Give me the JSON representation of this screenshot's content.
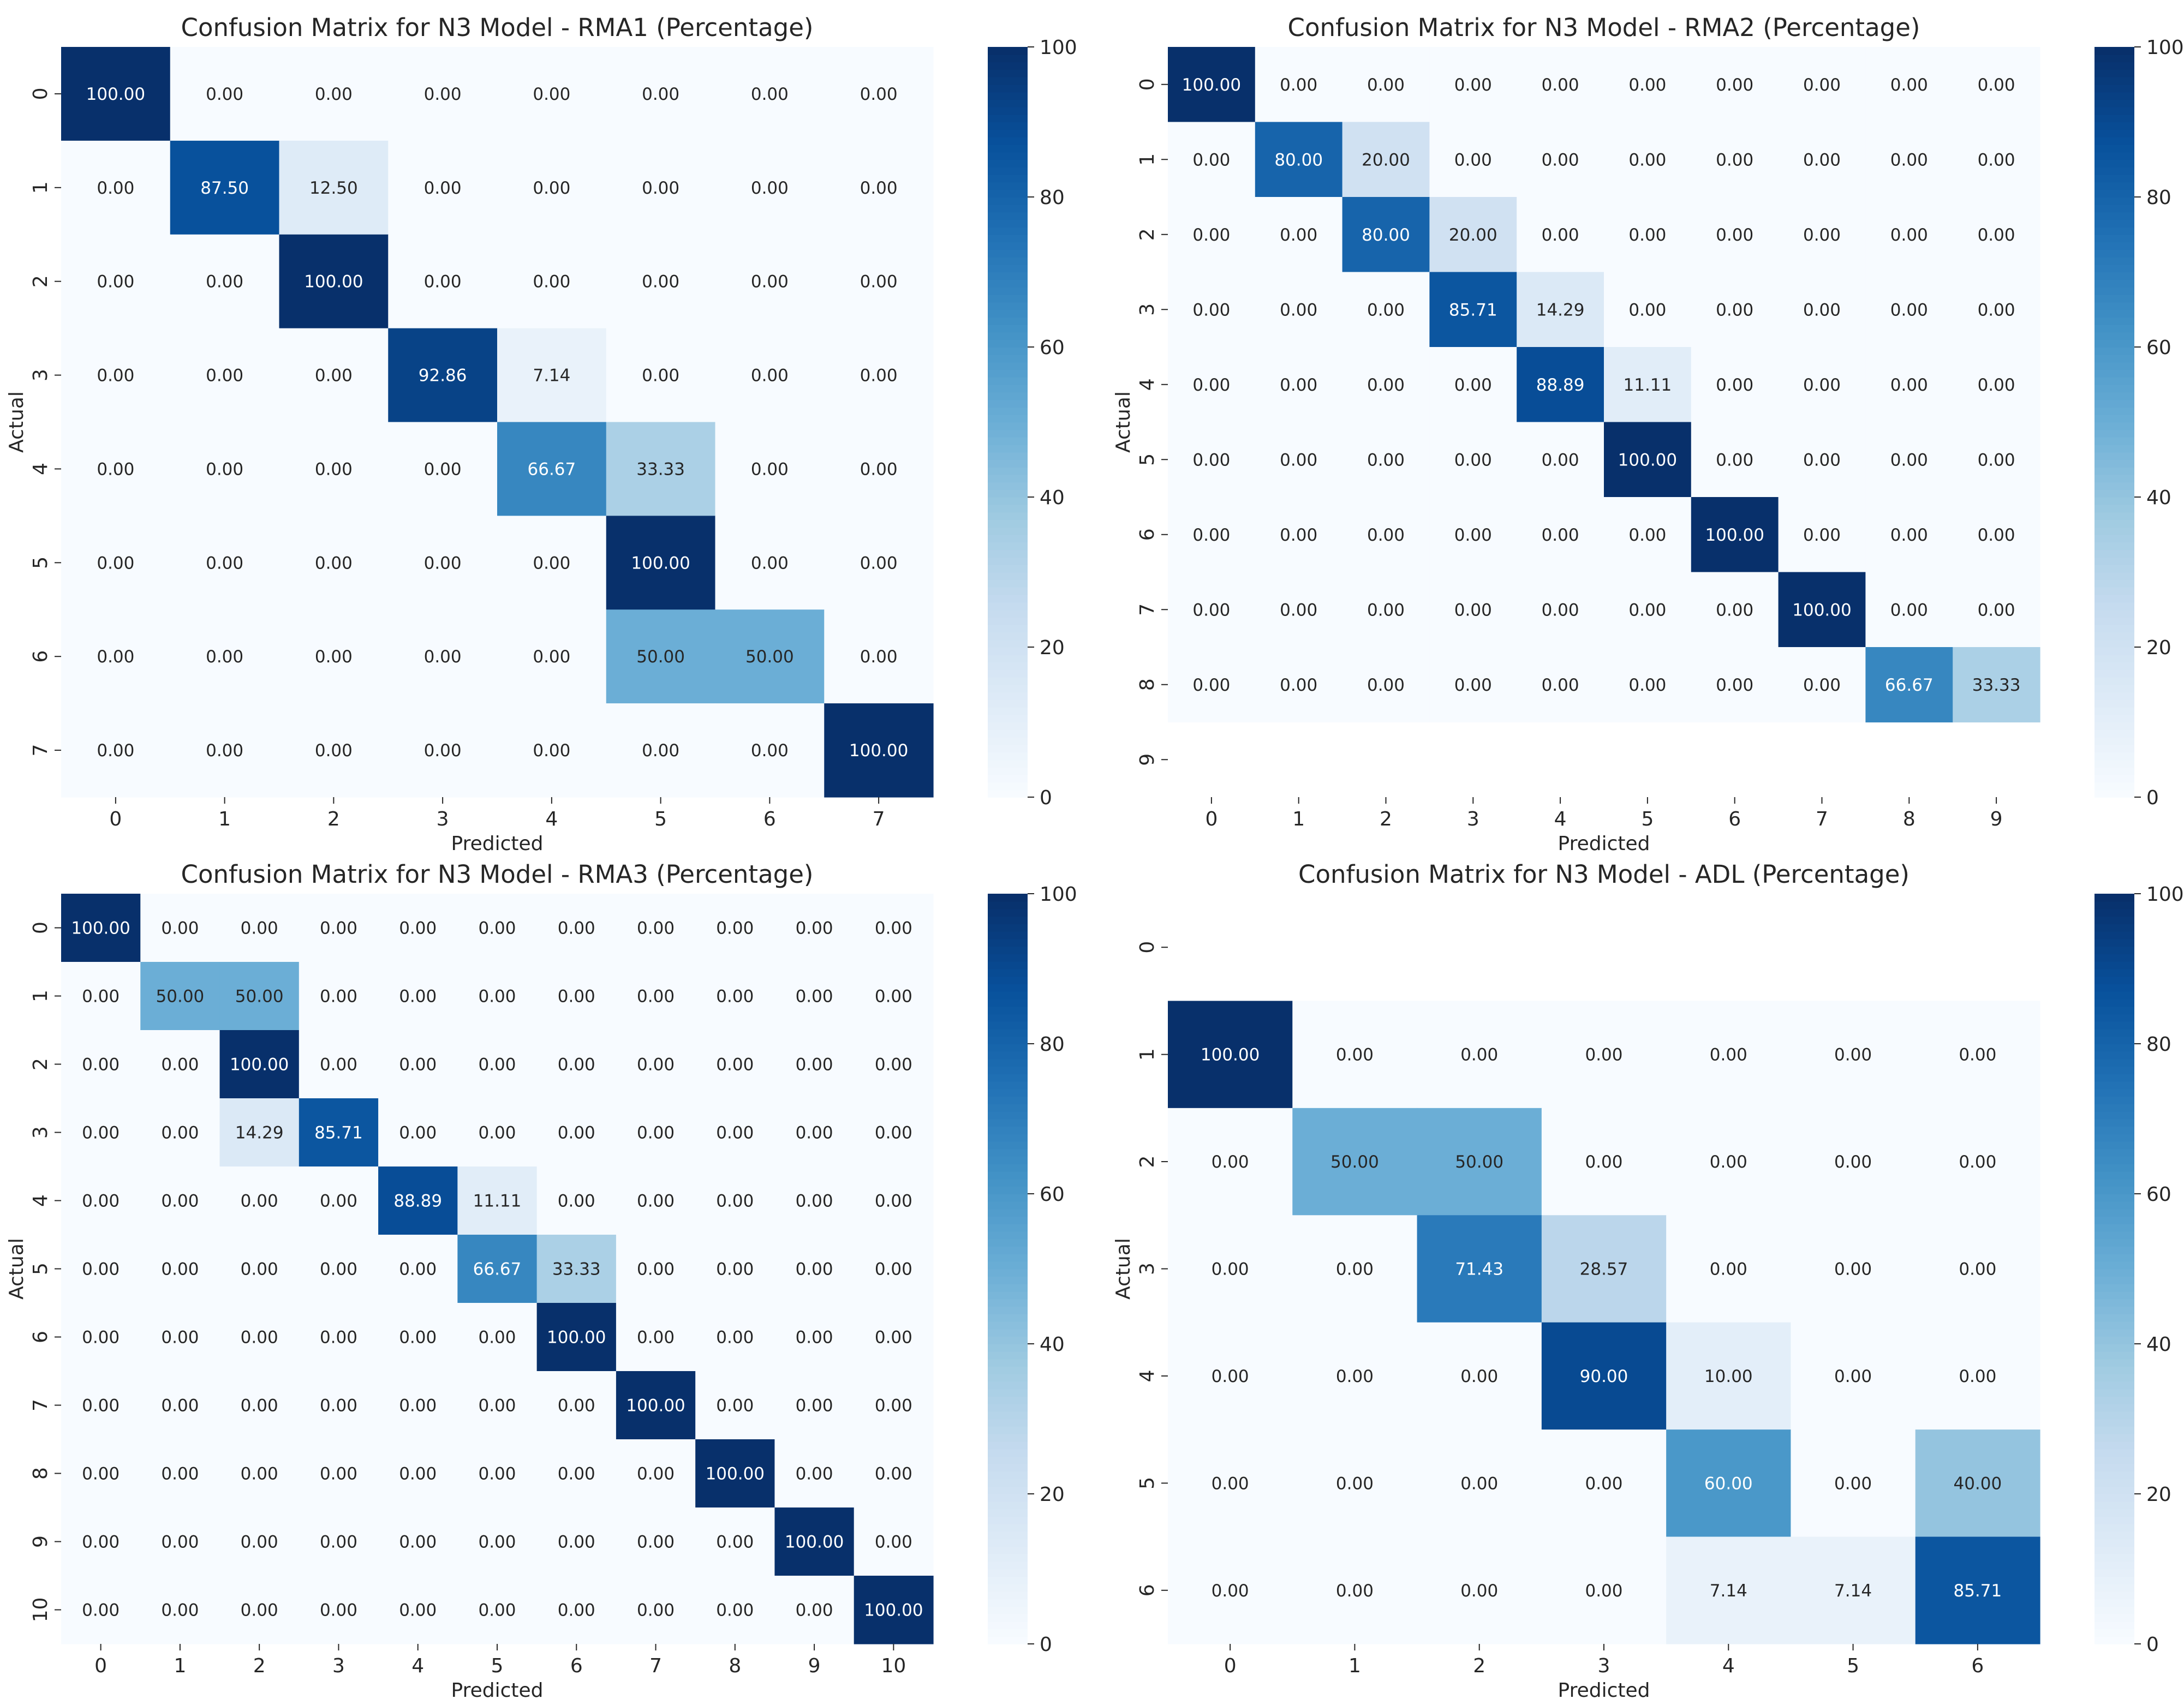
{
  "chart_data": [
    {
      "type": "heatmap",
      "title": "Confusion Matrix for N3 Model - RMA1 (Percentage)",
      "xlabel": "Predicted",
      "ylabel": "Actual",
      "x_categories": [
        "0",
        "1",
        "2",
        "3",
        "4",
        "5",
        "6",
        "7"
      ],
      "y_categories": [
        "0",
        "1",
        "2",
        "3",
        "4",
        "5",
        "6",
        "7"
      ],
      "values": [
        [
          100.0,
          0.0,
          0.0,
          0.0,
          0.0,
          0.0,
          0.0,
          0.0
        ],
        [
          0.0,
          87.5,
          12.5,
          0.0,
          0.0,
          0.0,
          0.0,
          0.0
        ],
        [
          0.0,
          0.0,
          100.0,
          0.0,
          0.0,
          0.0,
          0.0,
          0.0
        ],
        [
          0.0,
          0.0,
          0.0,
          92.86,
          7.14,
          0.0,
          0.0,
          0.0
        ],
        [
          0.0,
          0.0,
          0.0,
          0.0,
          66.67,
          33.33,
          0.0,
          0.0
        ],
        [
          0.0,
          0.0,
          0.0,
          0.0,
          0.0,
          100.0,
          0.0,
          0.0
        ],
        [
          0.0,
          0.0,
          0.0,
          0.0,
          0.0,
          50.0,
          50.0,
          0.0
        ],
        [
          0.0,
          0.0,
          0.0,
          0.0,
          0.0,
          0.0,
          0.0,
          100.0
        ]
      ],
      "colorbar": {
        "range": [
          0,
          100
        ],
        "ticks": [
          "0",
          "20",
          "40",
          "60",
          "80",
          "100"
        ],
        "colormap": "Blues"
      }
    },
    {
      "type": "heatmap",
      "title": "Confusion Matrix for N3 Model - RMA2 (Percentage)",
      "xlabel": "Predicted",
      "ylabel": "Actual",
      "x_categories": [
        "0",
        "1",
        "2",
        "3",
        "4",
        "5",
        "6",
        "7",
        "8",
        "9"
      ],
      "y_categories": [
        "0",
        "1",
        "2",
        "3",
        "4",
        "5",
        "6",
        "7",
        "8",
        "9"
      ],
      "values": [
        [
          100.0,
          0.0,
          0.0,
          0.0,
          0.0,
          0.0,
          0.0,
          0.0,
          0.0,
          0.0
        ],
        [
          0.0,
          80.0,
          20.0,
          0.0,
          0.0,
          0.0,
          0.0,
          0.0,
          0.0,
          0.0
        ],
        [
          0.0,
          0.0,
          80.0,
          20.0,
          0.0,
          0.0,
          0.0,
          0.0,
          0.0,
          0.0
        ],
        [
          0.0,
          0.0,
          0.0,
          85.71,
          14.29,
          0.0,
          0.0,
          0.0,
          0.0,
          0.0
        ],
        [
          0.0,
          0.0,
          0.0,
          0.0,
          88.89,
          11.11,
          0.0,
          0.0,
          0.0,
          0.0
        ],
        [
          0.0,
          0.0,
          0.0,
          0.0,
          0.0,
          100.0,
          0.0,
          0.0,
          0.0,
          0.0
        ],
        [
          0.0,
          0.0,
          0.0,
          0.0,
          0.0,
          0.0,
          100.0,
          0.0,
          0.0,
          0.0
        ],
        [
          0.0,
          0.0,
          0.0,
          0.0,
          0.0,
          0.0,
          0.0,
          100.0,
          0.0,
          0.0
        ],
        [
          0.0,
          0.0,
          0.0,
          0.0,
          0.0,
          0.0,
          0.0,
          0.0,
          66.67,
          33.33
        ],
        null
      ],
      "colorbar": {
        "range": [
          0,
          100
        ],
        "ticks": [
          "0",
          "20",
          "40",
          "60",
          "80",
          "100"
        ],
        "colormap": "Blues"
      }
    },
    {
      "type": "heatmap",
      "title": "Confusion Matrix for N3 Model - RMA3 (Percentage)",
      "xlabel": "Predicted",
      "ylabel": "Actual",
      "x_categories": [
        "0",
        "1",
        "2",
        "3",
        "4",
        "5",
        "6",
        "7",
        "8",
        "9",
        "10"
      ],
      "y_categories": [
        "0",
        "1",
        "2",
        "3",
        "4",
        "5",
        "6",
        "7",
        "8",
        "9",
        "10"
      ],
      "values": [
        [
          100.0,
          0.0,
          0.0,
          0.0,
          0.0,
          0.0,
          0.0,
          0.0,
          0.0,
          0.0,
          0.0
        ],
        [
          0.0,
          50.0,
          50.0,
          0.0,
          0.0,
          0.0,
          0.0,
          0.0,
          0.0,
          0.0,
          0.0
        ],
        [
          0.0,
          0.0,
          100.0,
          0.0,
          0.0,
          0.0,
          0.0,
          0.0,
          0.0,
          0.0,
          0.0
        ],
        [
          0.0,
          0.0,
          14.29,
          85.71,
          0.0,
          0.0,
          0.0,
          0.0,
          0.0,
          0.0,
          0.0
        ],
        [
          0.0,
          0.0,
          0.0,
          0.0,
          88.89,
          11.11,
          0.0,
          0.0,
          0.0,
          0.0,
          0.0
        ],
        [
          0.0,
          0.0,
          0.0,
          0.0,
          0.0,
          66.67,
          33.33,
          0.0,
          0.0,
          0.0,
          0.0
        ],
        [
          0.0,
          0.0,
          0.0,
          0.0,
          0.0,
          0.0,
          100.0,
          0.0,
          0.0,
          0.0,
          0.0
        ],
        [
          0.0,
          0.0,
          0.0,
          0.0,
          0.0,
          0.0,
          0.0,
          100.0,
          0.0,
          0.0,
          0.0
        ],
        [
          0.0,
          0.0,
          0.0,
          0.0,
          0.0,
          0.0,
          0.0,
          0.0,
          100.0,
          0.0,
          0.0
        ],
        [
          0.0,
          0.0,
          0.0,
          0.0,
          0.0,
          0.0,
          0.0,
          0.0,
          0.0,
          100.0,
          0.0
        ],
        [
          0.0,
          0.0,
          0.0,
          0.0,
          0.0,
          0.0,
          0.0,
          0.0,
          0.0,
          0.0,
          100.0
        ]
      ],
      "colorbar": {
        "range": [
          0,
          100
        ],
        "ticks": [
          "0",
          "20",
          "40",
          "60",
          "80",
          "100"
        ],
        "colormap": "Blues"
      }
    },
    {
      "type": "heatmap",
      "title": "Confusion Matrix for N3 Model - ADL (Percentage)",
      "xlabel": "Predicted",
      "ylabel": "Actual",
      "x_categories": [
        "0",
        "1",
        "2",
        "3",
        "4",
        "5",
        "6"
      ],
      "y_categories": [
        "0",
        "1",
        "2",
        "3",
        "4",
        "5",
        "6"
      ],
      "values": [
        null,
        [
          100.0,
          0.0,
          0.0,
          0.0,
          0.0,
          0.0,
          0.0
        ],
        [
          0.0,
          50.0,
          50.0,
          0.0,
          0.0,
          0.0,
          0.0
        ],
        [
          0.0,
          0.0,
          71.43,
          28.57,
          0.0,
          0.0,
          0.0
        ],
        [
          0.0,
          0.0,
          0.0,
          90.0,
          10.0,
          0.0,
          0.0
        ],
        [
          0.0,
          0.0,
          0.0,
          0.0,
          60.0,
          0.0,
          40.0
        ],
        [
          0.0,
          0.0,
          0.0,
          0.0,
          7.14,
          7.14,
          85.71
        ]
      ],
      "colorbar": {
        "range": [
          0,
          100
        ],
        "ticks": [
          "0",
          "20",
          "40",
          "60",
          "80",
          "100"
        ],
        "colormap": "Blues"
      }
    }
  ]
}
